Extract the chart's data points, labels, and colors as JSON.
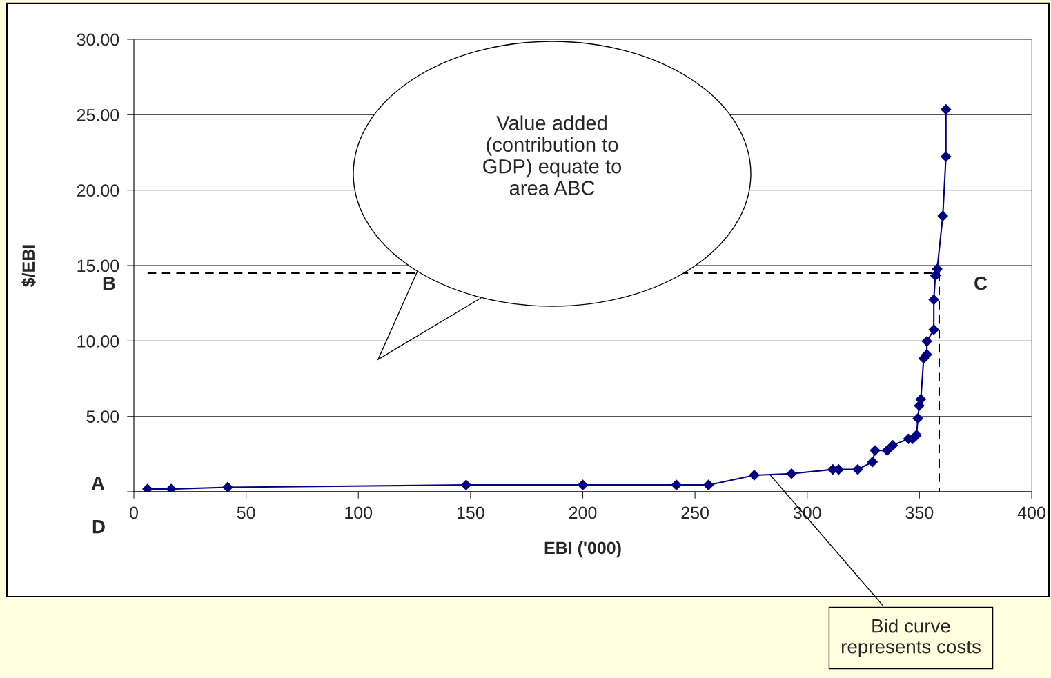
{
  "chart_data": {
    "type": "line",
    "xlabel": "EBI ('000)",
    "ylabel": "$/EBI",
    "xlim": [
      0,
      400
    ],
    "xticks": [
      0,
      50,
      100,
      150,
      200,
      250,
      300,
      350,
      400
    ],
    "ylim": [
      0,
      30
    ],
    "yticks": [
      {
        "value": 0,
        "label": null
      },
      {
        "value": 5,
        "label": "5.00"
      },
      {
        "value": 10,
        "label": "10.00"
      },
      {
        "value": 15,
        "label": "15.00"
      },
      {
        "value": 20,
        "label": "20.00"
      },
      {
        "value": 25,
        "label": "25.00"
      },
      {
        "value": 30,
        "label": "30.00"
      }
    ],
    "grid": "y",
    "legend": false,
    "series": [
      {
        "color": "#000080",
        "marker": "diamond",
        "line_style": "solid",
        "x": [
          6.1,
          16.6,
          41.8,
          148,
          200,
          241.7,
          256,
          276.4,
          293,
          311.4,
          314,
          322.5,
          329.1,
          330.2,
          335.6,
          338.1,
          345.1,
          347,
          348.7,
          349.3,
          349.9,
          350.6,
          351.9,
          353.3,
          353.3,
          356.4,
          356.4,
          357.1,
          357.9,
          360.4,
          361.8,
          361.8
        ],
        "values": [
          0.18,
          0.18,
          0.3,
          0.45,
          0.45,
          0.45,
          0.45,
          1.1,
          1.2,
          1.48,
          1.48,
          1.48,
          1.98,
          2.74,
          2.74,
          3.08,
          3.51,
          3.51,
          3.76,
          4.86,
          5.71,
          6.13,
          8.84,
          9.1,
          9.98,
          10.75,
          12.74,
          14.34,
          14.77,
          18.29,
          22.22,
          25.35
        ]
      },
      {
        "color": "#000000",
        "marker": "none",
        "line_style": "dashed",
        "x": [
          6.1,
          358.8,
          358.8
        ],
        "values": [
          14.5,
          14.5,
          0
        ]
      }
    ],
    "annotations": [
      "A",
      "B",
      "C",
      "D",
      "Value added\n(contribution to\nGDP) equate to\narea ABC",
      {
        "text": "Bid curve\nrepresents costs",
        "x": 283,
        "y": 1.2
      }
    ]
  }
}
